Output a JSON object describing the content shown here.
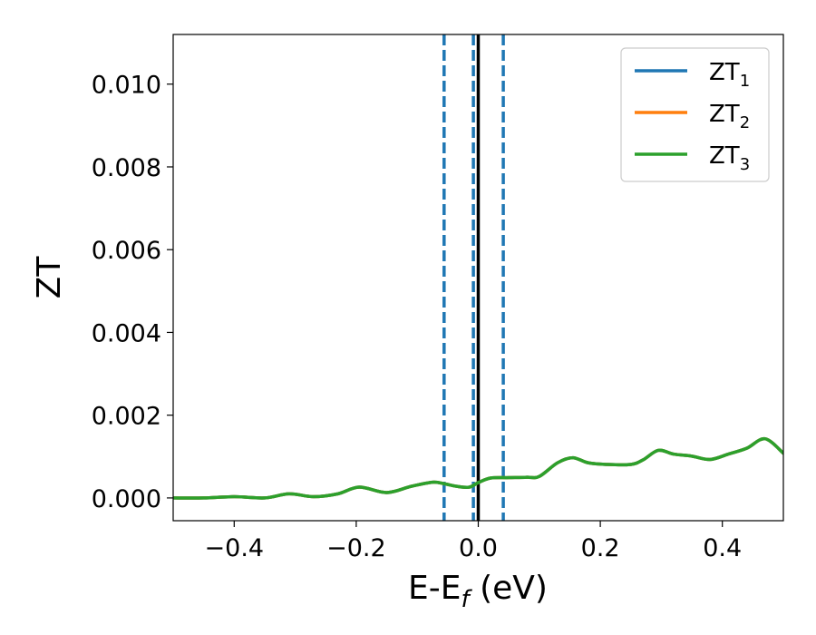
{
  "chart_data": {
    "type": "line",
    "xlabel": "E-E",
    "xlabel_sub": "f",
    "xlabel_unit": " (eV)",
    "ylabel": "ZT",
    "xlim": [
      -0.5,
      0.5
    ],
    "ylim": [
      -0.00055,
      0.0112
    ],
    "xticks": [
      -0.4,
      -0.2,
      0.0,
      0.2,
      0.4
    ],
    "xtick_labels": [
      "−0.4",
      "−0.2",
      "0.0",
      "0.2",
      "0.4"
    ],
    "yticks": [
      0.0,
      0.002,
      0.004,
      0.006,
      0.008,
      0.01
    ],
    "ytick_labels": [
      "0.000",
      "0.002",
      "0.004",
      "0.006",
      "0.008",
      "0.010"
    ],
    "legend_position": "top-right",
    "grid": false,
    "fermi_line": {
      "x": 0.0,
      "color": "#000000"
    },
    "vlines_dashed": [
      {
        "x": -0.056,
        "color": "#1f77b4"
      },
      {
        "x": -0.008,
        "color": "#1f77b4"
      },
      {
        "x": 0.041,
        "color": "#1f77b4"
      }
    ],
    "series": [
      {
        "name": "ZT",
        "name_sub": "1",
        "color": "#1f77b4",
        "x": [
          -0.5,
          -0.45,
          -0.4,
          -0.35,
          -0.31,
          -0.27,
          -0.23,
          -0.195,
          -0.15,
          -0.11,
          -0.075,
          -0.055,
          -0.035,
          -0.015,
          0.0,
          0.02,
          0.05,
          0.08,
          0.1,
          0.13,
          0.155,
          0.18,
          0.21,
          0.25,
          0.27,
          0.295,
          0.32,
          0.35,
          0.38,
          0.41,
          0.44,
          0.47,
          0.5
        ],
        "y": [
          0.0,
          0.0,
          3e-05,
          0.0,
          0.0001,
          3e-05,
          0.0001,
          0.00026,
          0.00013,
          0.00028,
          0.00038,
          0.00034,
          0.00028,
          0.00026,
          0.00037,
          0.00048,
          0.00049,
          0.0005,
          0.00052,
          0.00085,
          0.00097,
          0.00085,
          0.00081,
          0.00081,
          0.00092,
          0.00115,
          0.00106,
          0.00101,
          0.00093,
          0.00106,
          0.0012,
          0.00143,
          0.00108
        ]
      },
      {
        "name": "ZT",
        "name_sub": "2",
        "color": "#ff7f0e",
        "x": [
          -0.5,
          -0.45,
          -0.4,
          -0.35,
          -0.31,
          -0.27,
          -0.23,
          -0.195,
          -0.15,
          -0.11,
          -0.075,
          -0.055,
          -0.035,
          -0.015,
          0.0,
          0.02,
          0.05,
          0.08,
          0.1,
          0.13,
          0.155,
          0.18,
          0.21,
          0.25,
          0.27,
          0.295,
          0.32,
          0.35,
          0.38,
          0.41,
          0.44,
          0.47,
          0.5
        ],
        "y": [
          0.0,
          0.0,
          3e-05,
          0.0,
          0.0001,
          3e-05,
          0.0001,
          0.00026,
          0.00013,
          0.00028,
          0.00038,
          0.00034,
          0.00028,
          0.00026,
          0.00037,
          0.00048,
          0.00049,
          0.0005,
          0.00052,
          0.00085,
          0.00097,
          0.00085,
          0.00081,
          0.00081,
          0.00092,
          0.00115,
          0.00106,
          0.00101,
          0.00093,
          0.00106,
          0.0012,
          0.00143,
          0.00108
        ]
      },
      {
        "name": "ZT",
        "name_sub": "3",
        "color": "#2ca02c",
        "x": [
          -0.5,
          -0.45,
          -0.4,
          -0.35,
          -0.31,
          -0.27,
          -0.23,
          -0.195,
          -0.15,
          -0.11,
          -0.075,
          -0.055,
          -0.035,
          -0.015,
          0.0,
          0.02,
          0.05,
          0.08,
          0.1,
          0.13,
          0.155,
          0.18,
          0.21,
          0.25,
          0.27,
          0.295,
          0.32,
          0.35,
          0.38,
          0.41,
          0.44,
          0.47,
          0.5
        ],
        "y": [
          0.0,
          0.0,
          3e-05,
          0.0,
          0.0001,
          3e-05,
          0.0001,
          0.00026,
          0.00013,
          0.00028,
          0.00038,
          0.00034,
          0.00028,
          0.00026,
          0.00037,
          0.00048,
          0.00049,
          0.0005,
          0.00052,
          0.00085,
          0.00097,
          0.00085,
          0.00081,
          0.00081,
          0.00092,
          0.00115,
          0.00106,
          0.00101,
          0.00093,
          0.00106,
          0.0012,
          0.00143,
          0.00108
        ]
      }
    ]
  }
}
